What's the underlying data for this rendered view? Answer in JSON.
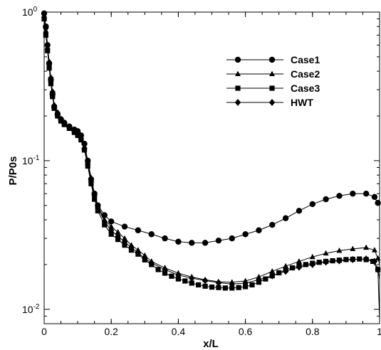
{
  "chart_data": {
    "type": "line",
    "xlabel": "x/L",
    "ylabel": "P/P0s",
    "x_scale": "linear",
    "y_scale": "log",
    "xlim": [
      0,
      1
    ],
    "ylim": [
      0.008,
      1
    ],
    "x_ticks": [
      {
        "value": 0,
        "label": "0"
      },
      {
        "value": 0.2,
        "label": "0.2"
      },
      {
        "value": 0.4,
        "label": "0.4"
      },
      {
        "value": 0.6,
        "label": "0.6"
      },
      {
        "value": 0.8,
        "label": "0.8"
      },
      {
        "value": 1,
        "label": "1"
      }
    ],
    "y_ticks": [
      {
        "value": 1,
        "base": "10",
        "exp": "0"
      },
      {
        "value": 0.1,
        "base": "10",
        "exp": "-1"
      },
      {
        "value": 0.01,
        "base": "10",
        "exp": "-2"
      }
    ],
    "grid": false,
    "legend_position": "top-right",
    "series": [
      {
        "name": "Case1",
        "marker": "circle",
        "x": [
          0,
          0.005,
          0.01,
          0.015,
          0.02,
          0.025,
          0.03,
          0.04,
          0.05,
          0.06,
          0.075,
          0.09,
          0.1,
          0.11,
          0.12,
          0.13,
          0.14,
          0.15,
          0.16,
          0.18,
          0.2,
          0.24,
          0.28,
          0.32,
          0.36,
          0.4,
          0.44,
          0.48,
          0.52,
          0.56,
          0.6,
          0.64,
          0.68,
          0.72,
          0.76,
          0.8,
          0.84,
          0.88,
          0.92,
          0.96,
          0.985,
          0.995,
          1.0
        ],
        "y": [
          0.98,
          0.8,
          0.6,
          0.45,
          0.35,
          0.28,
          0.23,
          0.205,
          0.19,
          0.18,
          0.17,
          0.162,
          0.158,
          0.148,
          0.13,
          0.1,
          0.075,
          0.06,
          0.05,
          0.043,
          0.039,
          0.036,
          0.034,
          0.032,
          0.03,
          0.0285,
          0.028,
          0.028,
          0.029,
          0.03,
          0.032,
          0.034,
          0.037,
          0.041,
          0.046,
          0.051,
          0.055,
          0.058,
          0.06,
          0.06,
          0.057,
          0.052,
          0.05
        ]
      },
      {
        "name": "Case2",
        "marker": "triangle",
        "x": [
          0,
          0.005,
          0.01,
          0.015,
          0.02,
          0.025,
          0.03,
          0.04,
          0.05,
          0.06,
          0.075,
          0.09,
          0.1,
          0.11,
          0.12,
          0.13,
          0.14,
          0.15,
          0.16,
          0.18,
          0.2,
          0.22,
          0.24,
          0.26,
          0.28,
          0.3,
          0.32,
          0.36,
          0.4,
          0.44,
          0.48,
          0.52,
          0.56,
          0.6,
          0.64,
          0.68,
          0.72,
          0.76,
          0.8,
          0.84,
          0.88,
          0.92,
          0.96,
          0.985,
          0.995,
          1.0
        ],
        "y": [
          0.95,
          0.75,
          0.58,
          0.44,
          0.35,
          0.28,
          0.23,
          0.205,
          0.19,
          0.18,
          0.17,
          0.16,
          0.155,
          0.145,
          0.125,
          0.1,
          0.077,
          0.06,
          0.05,
          0.04,
          0.036,
          0.033,
          0.03,
          0.027,
          0.025,
          0.023,
          0.021,
          0.019,
          0.0175,
          0.0165,
          0.0158,
          0.0153,
          0.0152,
          0.0155,
          0.0165,
          0.018,
          0.0195,
          0.021,
          0.0225,
          0.0238,
          0.0248,
          0.0255,
          0.026,
          0.025,
          0.022,
          0.02
        ]
      },
      {
        "name": "Case3",
        "marker": "square",
        "x": [
          0,
          0.005,
          0.01,
          0.015,
          0.02,
          0.025,
          0.03,
          0.04,
          0.05,
          0.06,
          0.075,
          0.09,
          0.1,
          0.11,
          0.12,
          0.13,
          0.14,
          0.15,
          0.16,
          0.18,
          0.2,
          0.22,
          0.24,
          0.26,
          0.28,
          0.3,
          0.32,
          0.34,
          0.36,
          0.38,
          0.4,
          0.42,
          0.44,
          0.46,
          0.48,
          0.5,
          0.52,
          0.54,
          0.56,
          0.58,
          0.6,
          0.62,
          0.64,
          0.66,
          0.68,
          0.7,
          0.72,
          0.74,
          0.76,
          0.78,
          0.8,
          0.82,
          0.84,
          0.86,
          0.88,
          0.9,
          0.92,
          0.94,
          0.96,
          0.98,
          0.995,
          1.0
        ],
        "y": [
          0.9,
          0.7,
          0.55,
          0.42,
          0.33,
          0.27,
          0.225,
          0.2,
          0.185,
          0.175,
          0.165,
          0.155,
          0.148,
          0.138,
          0.118,
          0.092,
          0.07,
          0.055,
          0.046,
          0.037,
          0.032,
          0.0295,
          0.027,
          0.025,
          0.0235,
          0.0215,
          0.02,
          0.0185,
          0.0175,
          0.0167,
          0.016,
          0.0155,
          0.015,
          0.0146,
          0.0143,
          0.0141,
          0.014,
          0.0139,
          0.0139,
          0.014,
          0.0142,
          0.0146,
          0.0152,
          0.016,
          0.0168,
          0.0176,
          0.0184,
          0.019,
          0.0196,
          0.02,
          0.0204,
          0.0207,
          0.021,
          0.0212,
          0.0214,
          0.0216,
          0.0217,
          0.0218,
          0.0216,
          0.021,
          0.0185,
          0.016
        ]
      },
      {
        "name": "HWT",
        "marker": "diamond",
        "x": [
          0,
          0.005,
          0.01,
          0.015,
          0.02,
          0.025,
          0.03,
          0.04,
          0.05,
          0.06,
          0.075,
          0.09,
          0.1,
          0.11,
          0.12,
          0.13,
          0.14,
          0.15,
          0.16,
          0.18,
          0.2,
          0.22,
          0.24,
          0.26,
          0.28,
          0.3,
          0.32,
          0.36,
          0.4,
          0.44,
          0.48,
          0.52,
          0.56,
          0.6,
          0.64,
          0.68,
          0.72,
          0.76,
          0.8,
          0.84,
          0.88,
          0.92,
          0.96,
          0.985,
          0.995,
          1.0
        ],
        "y": [
          0.97,
          0.78,
          0.6,
          0.46,
          0.36,
          0.29,
          0.235,
          0.21,
          0.19,
          0.178,
          0.168,
          0.158,
          0.15,
          0.14,
          0.12,
          0.095,
          0.072,
          0.058,
          0.048,
          0.039,
          0.034,
          0.031,
          0.0285,
          0.026,
          0.024,
          0.022,
          0.0205,
          0.0185,
          0.017,
          0.0162,
          0.0156,
          0.0151,
          0.0148,
          0.015,
          0.0158,
          0.0168,
          0.018,
          0.0192,
          0.02,
          0.0208,
          0.0212,
          0.0216,
          0.0218,
          0.021,
          0.0185,
          0.0085
        ]
      }
    ]
  }
}
